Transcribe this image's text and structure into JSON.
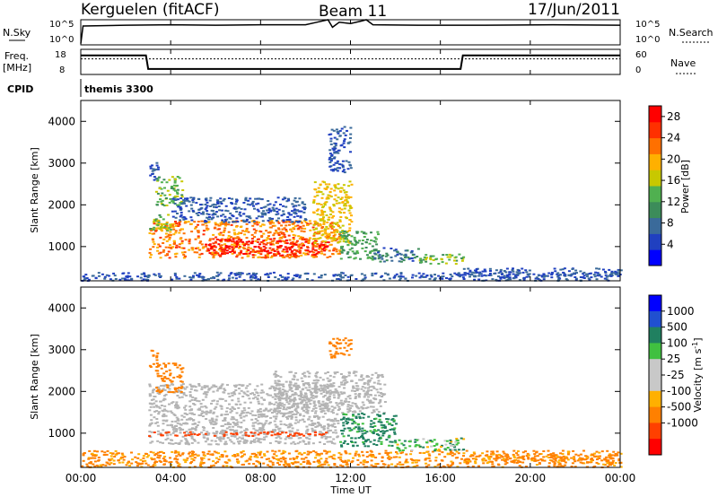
{
  "header": {
    "radar": "Kerguelen (fitACF)",
    "beam": "Beam 11",
    "date": "17/Jun/2011"
  },
  "top_labels": {
    "nsky": "N.Sky",
    "freq_line1": "Freq.",
    "freq_line2": "[MHz]",
    "cpid": "CPID",
    "nsearch": "N.Search",
    "nave": "Nave",
    "program": "themis 3300"
  },
  "colors": {
    "power_scale": [
      "#0000ff",
      "#2040c0",
      "#3a6a9a",
      "#3c8c5a",
      "#50b050",
      "#c8c800",
      "#ffb000",
      "#ff7000",
      "#ff3000",
      "#ff0000"
    ],
    "velocity_scale": [
      "#0000ff",
      "#2050d0",
      "#208060",
      "#40c040",
      "#c8c8c8",
      "#c8c8c8",
      "#ffb000",
      "#ff8000",
      "#ff4000",
      "#ff0000"
    ],
    "ground_scatter": "#b4b4b4"
  },
  "chart_data": [
    {
      "type": "line",
      "name": "nsky-noise-panel",
      "y_ticks": [
        "10^5",
        "10^0"
      ],
      "right_ticks": [
        "10^5",
        "10^0"
      ],
      "xlim": [
        "00:00",
        "24:00"
      ],
      "series": [
        {
          "x": [
            0,
            0.1,
            2,
            4,
            6,
            8,
            10,
            10.5,
            11,
            11.2,
            11.5,
            12,
            12.5,
            12.7,
            13,
            15,
            18,
            21,
            24
          ],
          "y": [
            0.05,
            0.75,
            0.78,
            0.8,
            0.78,
            0.8,
            0.8,
            0.9,
            1.0,
            0.7,
            0.9,
            0.85,
            0.95,
            1.0,
            0.8,
            0.78,
            0.78,
            0.8,
            0.78
          ]
        }
      ]
    },
    {
      "type": "line",
      "name": "frequency-nave-panel",
      "y_ticks": [
        "18",
        "8"
      ],
      "right_ticks": [
        "60",
        "0"
      ],
      "series": [
        {
          "name": "Freq",
          "x": [
            0,
            2.9,
            3.0,
            16.9,
            17.0,
            24
          ],
          "y": [
            0.76,
            0.76,
            0.22,
            0.22,
            0.76,
            0.76
          ]
        },
        {
          "name": "Nave",
          "x": [
            0,
            24
          ],
          "y": [
            0.62,
            0.62
          ]
        }
      ]
    },
    {
      "type": "heatmap",
      "title": "",
      "xlabel": "Time UT",
      "ylabel": "Slant Range [km]",
      "x_ticks": [
        "00:00",
        "04:00",
        "08:00",
        "12:00",
        "16:00",
        "20:00",
        "00:00"
      ],
      "y_ticks": [
        1000,
        2000,
        3000,
        4000
      ],
      "ylim": [
        180,
        4500
      ],
      "colorbar_label": "Power [dB]",
      "colorbar_ticks": [
        4,
        8,
        12,
        16,
        20,
        24,
        28
      ],
      "colorbar_range": [
        0,
        30
      ],
      "regions": [
        {
          "t0": 0.0,
          "t1": 24.0,
          "r0": 200,
          "r1": 400,
          "v": 6
        },
        {
          "t0": 3.0,
          "t1": 11.5,
          "r0": 750,
          "r1": 1650,
          "v": 22
        },
        {
          "t0": 5.5,
          "t1": 11.0,
          "r0": 800,
          "r1": 1200,
          "v": 28
        },
        {
          "t0": 3.0,
          "t1": 4.0,
          "r0": 1400,
          "r1": 1800,
          "v": 14
        },
        {
          "t0": 3.3,
          "t1": 4.5,
          "r0": 2000,
          "r1": 2700,
          "v": 14
        },
        {
          "t0": 10.3,
          "t1": 12.0,
          "r0": 1100,
          "r1": 2600,
          "v": 18
        },
        {
          "t0": 11.5,
          "t1": 13.2,
          "r0": 700,
          "r1": 1400,
          "v": 12
        },
        {
          "t0": 13.0,
          "t1": 15.0,
          "r0": 650,
          "r1": 1000,
          "v": 8
        },
        {
          "t0": 15.0,
          "t1": 17.0,
          "r0": 600,
          "r1": 850,
          "v": 14
        },
        {
          "t0": 17.0,
          "t1": 24.0,
          "r0": 300,
          "r1": 500,
          "v": 6
        },
        {
          "t0": 4.0,
          "t1": 10.0,
          "r0": 1600,
          "r1": 2200,
          "v": 6
        },
        {
          "t0": 3.0,
          "t1": 3.4,
          "r0": 2600,
          "r1": 3100,
          "v": 6
        },
        {
          "t0": 11.0,
          "t1": 12.0,
          "r0": 2800,
          "r1": 3900,
          "v": 6
        }
      ]
    },
    {
      "type": "heatmap",
      "title": "",
      "xlabel": "Time UT",
      "ylabel": "Slant Range [km]",
      "x_ticks": [
        "00:00",
        "04:00",
        "08:00",
        "12:00",
        "16:00",
        "20:00",
        "00:00"
      ],
      "y_ticks": [
        1000,
        2000,
        3000,
        4000
      ],
      "ylim": [
        180,
        4500
      ],
      "colorbar_label": "Velocity [m s^-1]",
      "colorbar_ticks": [
        1000,
        500,
        100,
        25,
        -25,
        -100,
        -500,
        -1000
      ],
      "colorbar_range": [
        -1200,
        1200
      ],
      "regions": [
        {
          "t0": 0.0,
          "t1": 24.0,
          "r0": 200,
          "r1": 600,
          "v": -150
        },
        {
          "t0": 3.0,
          "t1": 11.5,
          "r0": 750,
          "r1": 2200,
          "gs": true
        },
        {
          "t0": 8.5,
          "t1": 13.5,
          "r0": 1500,
          "r1": 2500,
          "gs": true
        },
        {
          "t0": 3.3,
          "t1": 4.5,
          "r0": 2000,
          "r1": 2700,
          "v": -300
        },
        {
          "t0": 11.5,
          "t1": 14.0,
          "r0": 700,
          "r1": 1500,
          "v": 150
        },
        {
          "t0": 14.0,
          "t1": 17.0,
          "r0": 600,
          "r1": 900,
          "v": 50
        },
        {
          "t0": 3.0,
          "t1": 11.0,
          "r0": 950,
          "r1": 1050,
          "v": -600
        },
        {
          "t0": 17.0,
          "t1": 24.0,
          "r0": 300,
          "r1": 500,
          "v": -150
        },
        {
          "t0": 11.0,
          "t1": 12.0,
          "r0": 2800,
          "r1": 3300,
          "v": -300
        },
        {
          "t0": 3.0,
          "t1": 3.4,
          "r0": 2600,
          "r1": 3000,
          "v": -300
        }
      ]
    }
  ]
}
